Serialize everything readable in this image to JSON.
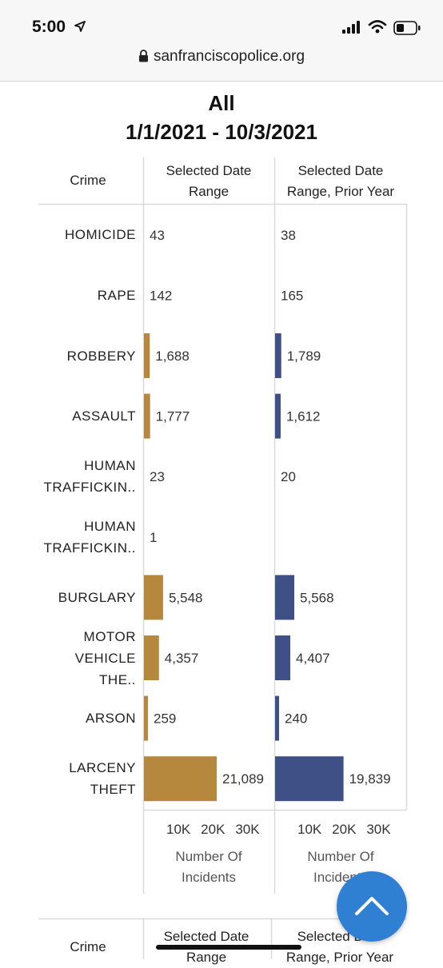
{
  "status_bar": {
    "time": "5:00"
  },
  "browser": {
    "url": "sanfranciscopolice.org"
  },
  "titles": {
    "line1": "All",
    "line2": "1/1/2021 - 10/3/2021"
  },
  "headers": {
    "crime": "Crime",
    "selected_l1": "Selected Date",
    "selected_l2": "Range",
    "prior_l1": "Selected Date",
    "prior_l2": "Range, Prior Year"
  },
  "axis": {
    "label_l1": "Number Of",
    "label_l2": "Incidents"
  },
  "colors": {
    "current": "#b5883e",
    "prior": "#3e5085",
    "fab": "#2f7fd3"
  },
  "chart_data": {
    "type": "bar",
    "orientation": "horizontal",
    "categories": [
      [
        "HOMICIDE"
      ],
      [
        "RAPE"
      ],
      [
        "ROBBERY"
      ],
      [
        "ASSAULT"
      ],
      [
        "HUMAN",
        "TRAFFICKIN.."
      ],
      [
        "HUMAN",
        "TRAFFICKIN.."
      ],
      [
        "BURGLARY"
      ],
      [
        "MOTOR",
        "VEHICLE",
        "THE.."
      ],
      [
        "ARSON"
      ],
      [
        "LARCENY",
        "THEFT"
      ]
    ],
    "series": [
      {
        "name": "Selected Date Range",
        "values": [
          43,
          142,
          1688,
          1777,
          23,
          1,
          5548,
          4357,
          259,
          21089
        ],
        "labels": [
          "43",
          "142",
          "1,688",
          "1,777",
          "23",
          "1",
          "5,548",
          "4,357",
          "259",
          "21,089"
        ]
      },
      {
        "name": "Selected Date Range, Prior Year",
        "values": [
          38,
          165,
          1789,
          1612,
          20,
          null,
          5568,
          4407,
          240,
          19839
        ],
        "labels": [
          "38",
          "165",
          "1,789",
          "1,612",
          "20",
          "",
          "5,568",
          "4,407",
          "240",
          "19,839"
        ]
      }
    ],
    "ticks": [
      10000,
      20000,
      30000
    ],
    "tick_labels": [
      "10K",
      "20K",
      "30K"
    ],
    "xlabel": "Number Of Incidents",
    "xlim": [
      0,
      36000
    ]
  },
  "bottom_header": {
    "crime": "Crime",
    "selected_l1": "Selected Date",
    "selected_l2": "Range",
    "prior_l1": "Selected Date",
    "prior_l2": "Range, Prior Year"
  }
}
